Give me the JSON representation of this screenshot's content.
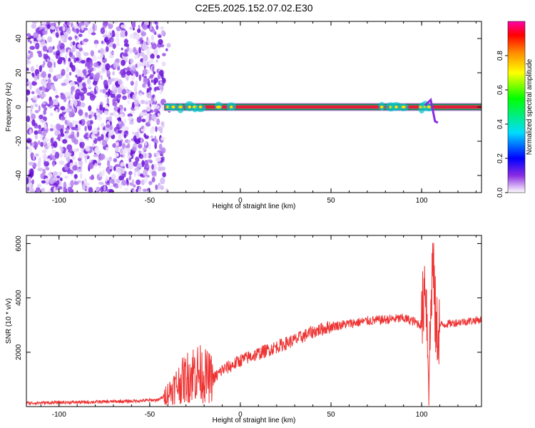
{
  "title": "C2E5.2025.152.07.02.E30",
  "chart_data": [
    {
      "type": "heatmap",
      "xlabel": "Height of straight line (km)",
      "ylabel": "Frequency (Hz)",
      "xlim": [
        -118,
        133
      ],
      "ylim": [
        -50,
        50
      ],
      "xticks": [
        "-100",
        "-50",
        "0",
        "50",
        "100"
      ],
      "yticks": [
        "-40",
        "-20",
        "0",
        "20",
        "40"
      ],
      "colorbar": {
        "label": "Normalized spectral amplitude",
        "range": [
          0.0,
          1.0
        ],
        "ticks": [
          "0.0",
          "0.2",
          "0.4",
          "0.6",
          "0.8"
        ]
      },
      "features": [
        {
          "name": "noise",
          "x_range": [
            -118,
            -42
          ],
          "y_range": [
            -50,
            50
          ]
        },
        {
          "name": "zero-doppler band",
          "x_range": [
            -42,
            133
          ],
          "y_center": 0
        }
      ]
    },
    {
      "type": "line",
      "xlabel": "Height of straight line (km)",
      "ylabel": "SNR (10 * v/v)",
      "xlim": [
        -118,
        133
      ],
      "ylim": [
        0,
        6300
      ],
      "xticks": [
        "-100",
        "-50",
        "0",
        "50",
        "100"
      ],
      "yticks": [
        "2000",
        "4000",
        "6000"
      ],
      "color": "#ee3333",
      "series": [
        {
          "x": [
            -118,
            -100,
            -80,
            -60,
            -45,
            -40,
            -35,
            -30,
            -25,
            -20,
            -15,
            -10,
            -5,
            0,
            10,
            20,
            30,
            40,
            50,
            60,
            70,
            80,
            90,
            95,
            100,
            102,
            104,
            106,
            108,
            110,
            120,
            133
          ],
          "y": [
            130,
            150,
            170,
            200,
            250,
            500,
            800,
            1050,
            1300,
            1150,
            1000,
            1350,
            1500,
            1700,
            1950,
            2200,
            2450,
            2750,
            2950,
            3050,
            3150,
            3200,
            3250,
            3150,
            3000,
            5000,
            1000,
            5500,
            2700,
            3000,
            3100,
            3200
          ]
        }
      ]
    }
  ]
}
